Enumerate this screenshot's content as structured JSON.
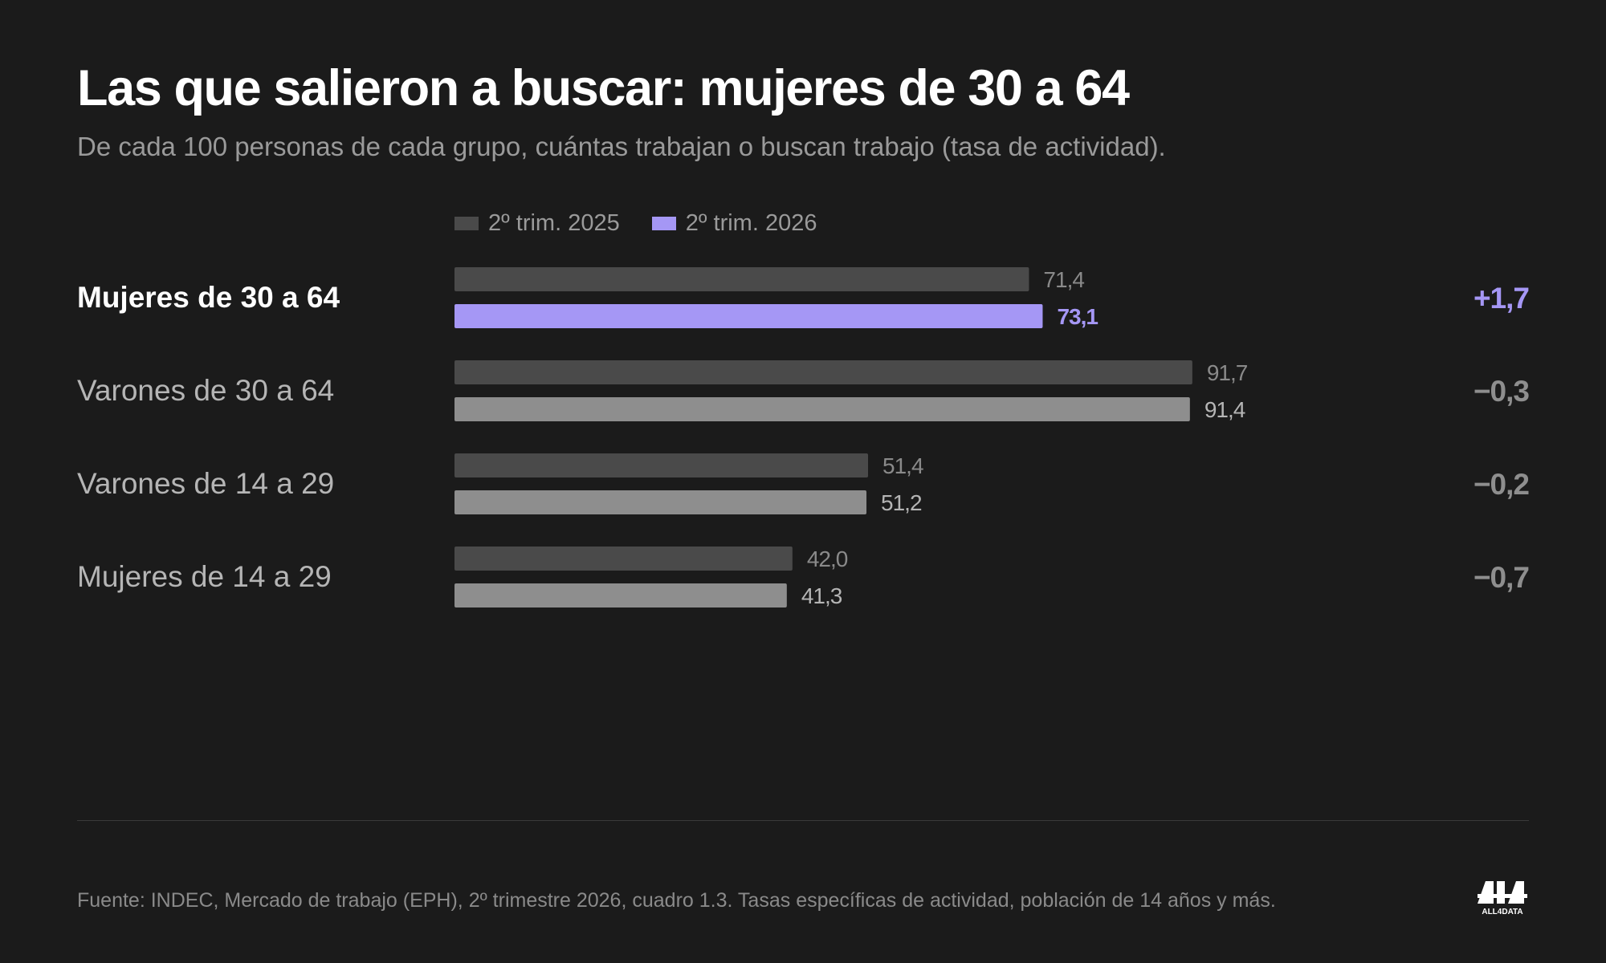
{
  "title": "Las que salieron a buscar: mujeres de 30 a 64",
  "subtitle": "De cada 100 personas de cada grupo, cuántas trabajan o buscan trabajo (tasa de actividad).",
  "source": "Fuente: INDEC, Mercado de trabajo (EPH), 2º trimestre 2026, cuadro 1.3. Tasas específicas de actividad, población de 14 años y más.",
  "logo_text": "ALL4DATA",
  "colors": {
    "series_2025": "#4a4a4a",
    "series_2026_highlight": "#a597f5",
    "series_2026": "#8e8e8e",
    "label_highlight": "#ffffff",
    "label_default": "#b5b5b5"
  },
  "chart_data": {
    "type": "bar",
    "orientation": "horizontal",
    "categories": [
      "Mujeres de 30 a 64",
      "Varones de 30 a 64",
      "Varones de 14 a 29",
      "Mujeres de 14 a 29"
    ],
    "highlight_category": "Mujeres de 30 a 64",
    "series": [
      {
        "name": "2º trim. 2025",
        "values": [
          71.4,
          91.7,
          51.4,
          42.0
        ],
        "labels": [
          "71,4",
          "91,7",
          "51,4",
          "42,0"
        ]
      },
      {
        "name": "2º trim. 2026",
        "values": [
          73.1,
          91.4,
          51.2,
          41.3
        ],
        "labels": [
          "73,1",
          "91,4",
          "51,2",
          "41,3"
        ]
      }
    ],
    "differences": [
      "+1,7",
      "−0,3",
      "−0,2",
      "−0,7"
    ],
    "xlim": [
      0,
      100
    ],
    "grid": false,
    "legend_position": "top"
  }
}
